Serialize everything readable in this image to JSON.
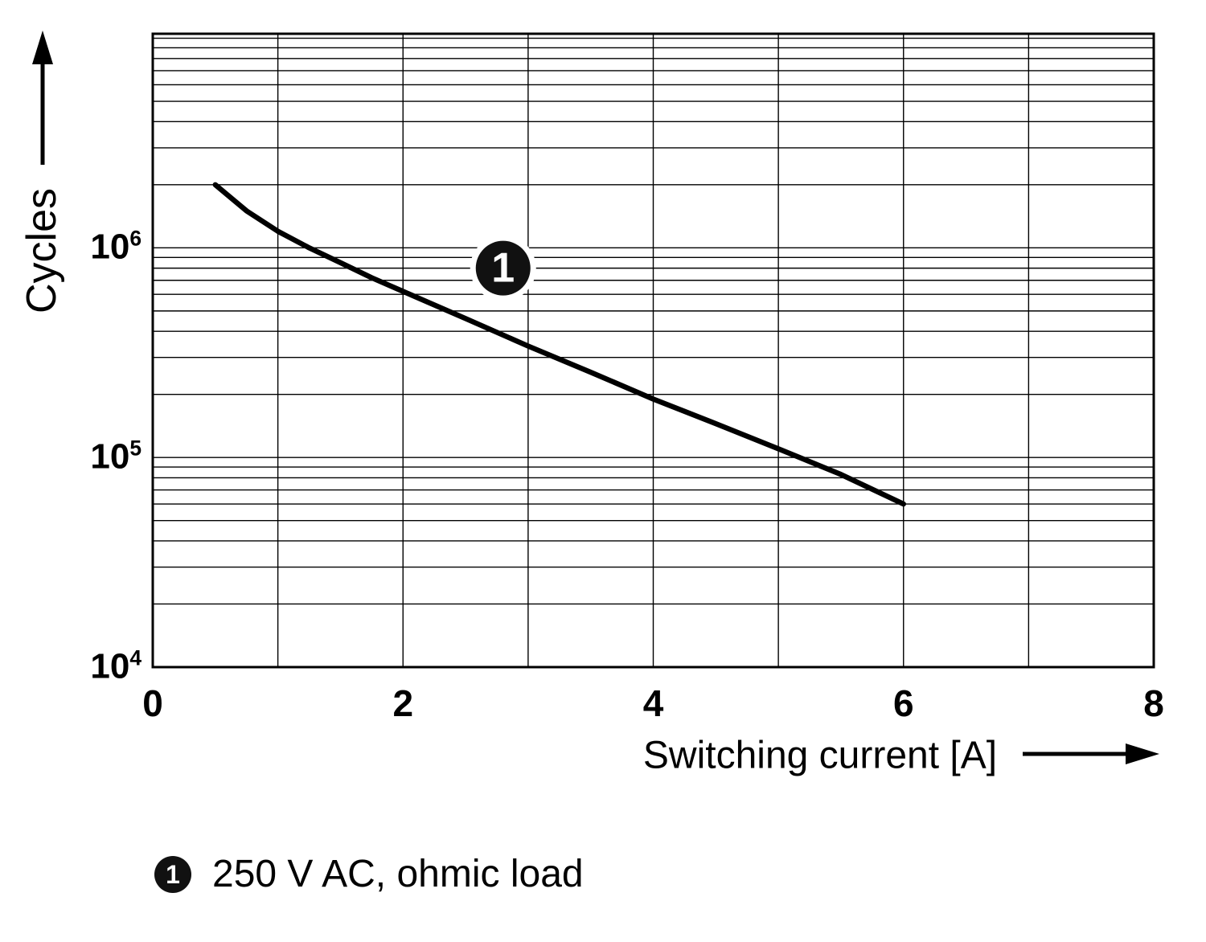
{
  "figure": {
    "y_axis_label": "Cycles",
    "x_axis_label": "Switching current [A]",
    "legend": {
      "marker": "1",
      "text": "250 V AC, ohmic load"
    },
    "accent_color": "#000000",
    "background_color": "#ffffff"
  },
  "chart_data": {
    "type": "line",
    "xlabel": "Switching current [A]",
    "ylabel": "Cycles",
    "xlim": [
      0,
      8
    ],
    "ylim": [
      10000,
      10500000
    ],
    "y_scale": "log",
    "grid": true,
    "x_gridline_step": 1,
    "x_ticks": [
      0,
      2,
      4,
      6,
      8
    ],
    "y_tick_exponents": [
      4,
      5,
      6
    ],
    "series": [
      {
        "name": "250 V AC, ohmic load",
        "label": "1",
        "x": [
          0.5,
          0.75,
          1.0,
          1.25,
          1.5,
          1.75,
          2.0,
          2.5,
          3.0,
          3.5,
          4.0,
          4.5,
          5.0,
          5.5,
          6.0
        ],
        "y": [
          2000000,
          1500000,
          1200000,
          1000000,
          850000,
          720000,
          620000,
          460000,
          340000,
          255000,
          190000,
          145000,
          110000,
          83000,
          60000
        ],
        "label_position": {
          "x": 2.8,
          "y": 800000
        }
      }
    ]
  }
}
